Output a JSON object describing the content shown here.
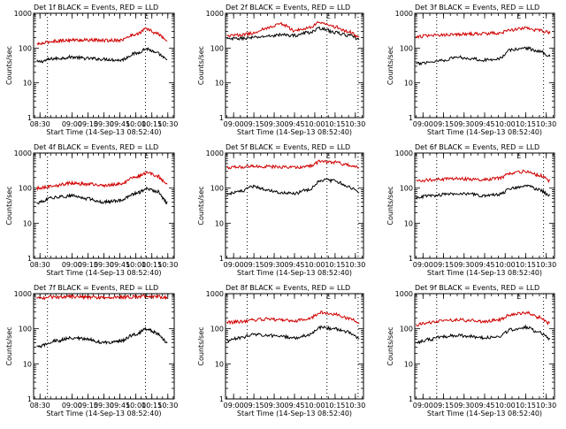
{
  "colors": {
    "events": "#000000",
    "lld": "#d00000"
  },
  "chart_data": [
    {
      "type": "line",
      "title": "Det 1f BLACK = Events, RED = LLD",
      "ylabel": "Counts/sec",
      "xlabel": "Start Time (14-Sep-13 08:52:40)",
      "scale": "log",
      "ylim": [
        1,
        1000
      ],
      "xlim": [
        "08:24",
        "10:36"
      ],
      "yticks": [
        1,
        10,
        100,
        1000
      ],
      "xticks": [
        "08:30",
        "09:00",
        "09:15",
        "09:30",
        "09:45",
        "10:00",
        "10:15",
        "10:30"
      ],
      "marker_label": "E",
      "marker_time": "10:10",
      "dotted_times": [
        "08:37",
        "10:09"
      ],
      "series": [
        {
          "name": "Events",
          "color_key": "events",
          "x": [
            "08:27",
            "08:45",
            "09:00",
            "09:15",
            "09:30",
            "09:45",
            "10:00",
            "10:10",
            "10:20",
            "10:30"
          ],
          "y": [
            40,
            50,
            55,
            50,
            48,
            45,
            70,
            95,
            70,
            45
          ]
        },
        {
          "name": "LLD",
          "color_key": "lld",
          "x": [
            "08:27",
            "08:45",
            "09:00",
            "09:15",
            "09:30",
            "09:45",
            "10:00",
            "10:10",
            "10:20",
            "10:30"
          ],
          "y": [
            130,
            160,
            170,
            170,
            165,
            170,
            250,
            350,
            260,
            160
          ]
        }
      ]
    },
    {
      "type": "line",
      "title": "Det 2f BLACK = Events, RED = LLD",
      "ylabel": "Counts/sec",
      "xlabel": "Start Time (14-Sep-13 08:52:40)",
      "scale": "log",
      "ylim": [
        1,
        1000
      ],
      "xlim": [
        "08:54",
        "10:36"
      ],
      "yticks": [
        1,
        10,
        100,
        1000
      ],
      "xticks": [
        "09:00",
        "09:15",
        "09:30",
        "09:45",
        "10:00",
        "10:15",
        "10:30"
      ],
      "marker_label": "E",
      "marker_time": "10:10",
      "dotted_times": [
        "09:10",
        "10:09",
        "10:32"
      ],
      "series": [
        {
          "name": "Events",
          "color_key": "events",
          "x": [
            "08:55",
            "09:05",
            "09:15",
            "09:25",
            "09:35",
            "09:45",
            "09:55",
            "10:05",
            "10:15",
            "10:25",
            "10:33"
          ],
          "y": [
            180,
            190,
            200,
            220,
            240,
            230,
            280,
            370,
            280,
            230,
            180
          ]
        },
        {
          "name": "LLD",
          "color_key": "lld",
          "x": [
            "08:55",
            "09:05",
            "09:15",
            "09:25",
            "09:35",
            "09:45",
            "09:55",
            "10:05",
            "10:15",
            "10:25",
            "10:33"
          ],
          "y": [
            230,
            240,
            270,
            380,
            500,
            320,
            380,
            560,
            400,
            300,
            210
          ]
        }
      ]
    },
    {
      "type": "line",
      "title": "Det 3f BLACK = Events, RED = LLD",
      "ylabel": "Counts/sec",
      "xlabel": "Start Time (14-Sep-13 08:52:40)",
      "scale": "log",
      "ylim": [
        1,
        1000
      ],
      "xlim": [
        "08:54",
        "10:36"
      ],
      "yticks": [
        1,
        10,
        100,
        1000
      ],
      "xticks": [
        "09:00",
        "09:15",
        "09:30",
        "09:45",
        "10:00",
        "10:15",
        "10:30"
      ],
      "marker_label": "E",
      "marker_time": "10:10",
      "dotted_times": [
        "09:10",
        "10:28"
      ],
      "series": [
        {
          "name": "Events",
          "color_key": "events",
          "x": [
            "08:55",
            "09:05",
            "09:15",
            "09:25",
            "09:35",
            "09:45",
            "09:55",
            "10:05",
            "10:15",
            "10:25",
            "10:33"
          ],
          "y": [
            35,
            40,
            45,
            55,
            50,
            45,
            50,
            90,
            100,
            80,
            60
          ]
        },
        {
          "name": "LLD",
          "color_key": "lld",
          "x": [
            "08:55",
            "09:05",
            "09:15",
            "09:25",
            "09:35",
            "09:45",
            "09:55",
            "10:05",
            "10:15",
            "10:25",
            "10:33"
          ],
          "y": [
            210,
            230,
            240,
            250,
            255,
            260,
            270,
            330,
            380,
            320,
            280
          ]
        }
      ]
    },
    {
      "type": "line",
      "title": "Det 4f BLACK = Events, RED = LLD",
      "ylabel": "Counts/sec",
      "xlabel": "Start Time (14-Sep-13 08:52:40)",
      "scale": "log",
      "ylim": [
        1,
        1000
      ],
      "xlim": [
        "08:24",
        "10:36"
      ],
      "yticks": [
        1,
        10,
        100,
        1000
      ],
      "xticks": [
        "08:30",
        "09:00",
        "09:15",
        "09:30",
        "09:45",
        "10:00",
        "10:15",
        "10:30"
      ],
      "marker_label": "E",
      "marker_time": "10:10",
      "dotted_times": [
        "08:37",
        "10:09"
      ],
      "series": [
        {
          "name": "Events",
          "color_key": "events",
          "x": [
            "08:27",
            "08:45",
            "09:00",
            "09:15",
            "09:30",
            "09:45",
            "10:00",
            "10:10",
            "10:20",
            "10:30"
          ],
          "y": [
            38,
            55,
            60,
            50,
            40,
            45,
            70,
            95,
            80,
            38
          ]
        },
        {
          "name": "LLD",
          "color_key": "lld",
          "x": [
            "08:27",
            "08:45",
            "09:00",
            "09:15",
            "09:30",
            "09:45",
            "10:00",
            "10:10",
            "10:20",
            "10:30"
          ],
          "y": [
            100,
            120,
            140,
            130,
            120,
            130,
            210,
            270,
            220,
            120
          ]
        }
      ]
    },
    {
      "type": "line",
      "title": "Det 5f BLACK = Events, RED = LLD",
      "ylabel": "Counts/sec",
      "xlabel": "Start Time (14-Sep-13 08:52:40)",
      "scale": "log",
      "ylim": [
        1,
        1000
      ],
      "xlim": [
        "08:54",
        "10:36"
      ],
      "yticks": [
        1,
        10,
        100,
        1000
      ],
      "xticks": [
        "09:00",
        "09:15",
        "09:30",
        "09:45",
        "10:00",
        "10:15",
        "10:30"
      ],
      "marker_label": "E",
      "marker_time": "10:10",
      "dotted_times": [
        "09:10",
        "10:09",
        "10:32"
      ],
      "series": [
        {
          "name": "Events",
          "color_key": "events",
          "x": [
            "08:55",
            "09:05",
            "09:15",
            "09:25",
            "09:35",
            "09:45",
            "09:55",
            "10:05",
            "10:15",
            "10:25",
            "10:33"
          ],
          "y": [
            70,
            80,
            110,
            90,
            75,
            70,
            90,
            170,
            160,
            110,
            75
          ]
        },
        {
          "name": "LLD",
          "color_key": "lld",
          "x": [
            "08:55",
            "09:05",
            "09:15",
            "09:25",
            "09:35",
            "09:45",
            "09:55",
            "10:05",
            "10:15",
            "10:25",
            "10:33"
          ],
          "y": [
            380,
            400,
            420,
            410,
            400,
            390,
            420,
            580,
            550,
            450,
            380
          ]
        }
      ]
    },
    {
      "type": "line",
      "title": "Det 6f BLACK = Events, RED = LLD",
      "ylabel": "Counts/sec",
      "xlabel": "Start Time (14-Sep-13 08:52:40)",
      "scale": "log",
      "ylim": [
        1,
        1000
      ],
      "xlim": [
        "08:54",
        "10:36"
      ],
      "yticks": [
        1,
        10,
        100,
        1000
      ],
      "xticks": [
        "09:00",
        "09:15",
        "09:30",
        "09:45",
        "10:00",
        "10:15",
        "10:30"
      ],
      "marker_label": "E",
      "marker_time": "10:10",
      "dotted_times": [
        "09:10",
        "10:28"
      ],
      "series": [
        {
          "name": "Events",
          "color_key": "events",
          "x": [
            "08:55",
            "09:05",
            "09:15",
            "09:25",
            "09:35",
            "09:45",
            "09:55",
            "10:05",
            "10:15",
            "10:25",
            "10:33"
          ],
          "y": [
            55,
            60,
            65,
            70,
            68,
            60,
            65,
            100,
            120,
            90,
            60
          ]
        },
        {
          "name": "LLD",
          "color_key": "lld",
          "x": [
            "08:55",
            "09:05",
            "09:15",
            "09:25",
            "09:35",
            "09:45",
            "09:55",
            "10:05",
            "10:15",
            "10:25",
            "10:33"
          ],
          "y": [
            160,
            170,
            180,
            185,
            180,
            175,
            190,
            270,
            300,
            230,
            160
          ]
        }
      ]
    },
    {
      "type": "line",
      "title": "Det 7f BLACK = Events, RED = LLD",
      "ylabel": "Counts/sec",
      "xlabel": "Start Time (14-Sep-13 08:52:40)",
      "scale": "log",
      "ylim": [
        1,
        1000
      ],
      "xlim": [
        "08:24",
        "10:36"
      ],
      "yticks": [
        1,
        10,
        100,
        1000
      ],
      "xticks": [
        "08:30",
        "09:00",
        "09:15",
        "09:30",
        "09:45",
        "10:00",
        "10:15",
        "10:30"
      ],
      "marker_label": "E",
      "marker_time": "10:10",
      "dotted_times": [
        "08:37",
        "10:09"
      ],
      "series": [
        {
          "name": "Events",
          "color_key": "events",
          "x": [
            "08:27",
            "08:45",
            "09:00",
            "09:15",
            "09:30",
            "09:45",
            "10:00",
            "10:10",
            "10:20",
            "10:30"
          ],
          "y": [
            30,
            45,
            55,
            50,
            40,
            45,
            70,
            100,
            75,
            40
          ]
        },
        {
          "name": "LLD",
          "color_key": "lld",
          "x": [
            "08:27",
            "08:45",
            "09:00",
            "09:15",
            "09:30",
            "09:45",
            "10:00",
            "10:10",
            "10:20",
            "10:30"
          ],
          "y": [
            750,
            800,
            820,
            800,
            780,
            790,
            820,
            850,
            820,
            780
          ]
        }
      ]
    },
    {
      "type": "line",
      "title": "Det 8f BLACK = Events, RED = LLD",
      "ylabel": "Counts/sec",
      "xlabel": "Start Time (14-Sep-13 08:52:40)",
      "scale": "log",
      "ylim": [
        1,
        1000
      ],
      "xlim": [
        "08:54",
        "10:36"
      ],
      "yticks": [
        1,
        10,
        100,
        1000
      ],
      "xticks": [
        "09:00",
        "09:15",
        "09:30",
        "09:45",
        "10:00",
        "10:15",
        "10:30"
      ],
      "marker_label": "E",
      "marker_time": "10:10",
      "dotted_times": [
        "09:10",
        "10:09",
        "10:32"
      ],
      "series": [
        {
          "name": "Events",
          "color_key": "events",
          "x": [
            "08:55",
            "09:05",
            "09:15",
            "09:25",
            "09:35",
            "09:45",
            "09:55",
            "10:05",
            "10:15",
            "10:25",
            "10:33"
          ],
          "y": [
            45,
            55,
            70,
            65,
            60,
            55,
            65,
            110,
            100,
            80,
            55
          ]
        },
        {
          "name": "LLD",
          "color_key": "lld",
          "x": [
            "08:55",
            "09:05",
            "09:15",
            "09:25",
            "09:35",
            "09:45",
            "09:55",
            "10:05",
            "10:15",
            "10:25",
            "10:33"
          ],
          "y": [
            150,
            160,
            180,
            190,
            175,
            170,
            190,
            290,
            260,
            200,
            150
          ]
        }
      ]
    },
    {
      "type": "line",
      "title": "Det 9f BLACK = Events, RED = LLD",
      "ylabel": "Counts/sec",
      "xlabel": "Start Time (14-Sep-13 08:52:40)",
      "scale": "log",
      "ylim": [
        1,
        1000
      ],
      "xlim": [
        "08:54",
        "10:36"
      ],
      "yticks": [
        1,
        10,
        100,
        1000
      ],
      "xticks": [
        "09:00",
        "09:15",
        "09:30",
        "09:45",
        "10:00",
        "10:15",
        "10:30"
      ],
      "marker_label": "E",
      "marker_time": "10:10",
      "dotted_times": [
        "09:10",
        "10:28"
      ],
      "series": [
        {
          "name": "Events",
          "color_key": "events",
          "x": [
            "08:55",
            "09:05",
            "09:15",
            "09:25",
            "09:35",
            "09:45",
            "09:55",
            "10:05",
            "10:15",
            "10:25",
            "10:33"
          ],
          "y": [
            40,
            50,
            60,
            65,
            60,
            55,
            60,
            95,
            110,
            80,
            50
          ]
        },
        {
          "name": "LLD",
          "color_key": "lld",
          "x": [
            "08:55",
            "09:05",
            "09:15",
            "09:25",
            "09:35",
            "09:45",
            "09:55",
            "10:05",
            "10:15",
            "10:25",
            "10:33"
          ],
          "y": [
            130,
            150,
            170,
            180,
            170,
            160,
            180,
            250,
            290,
            210,
            140
          ]
        }
      ]
    }
  ]
}
